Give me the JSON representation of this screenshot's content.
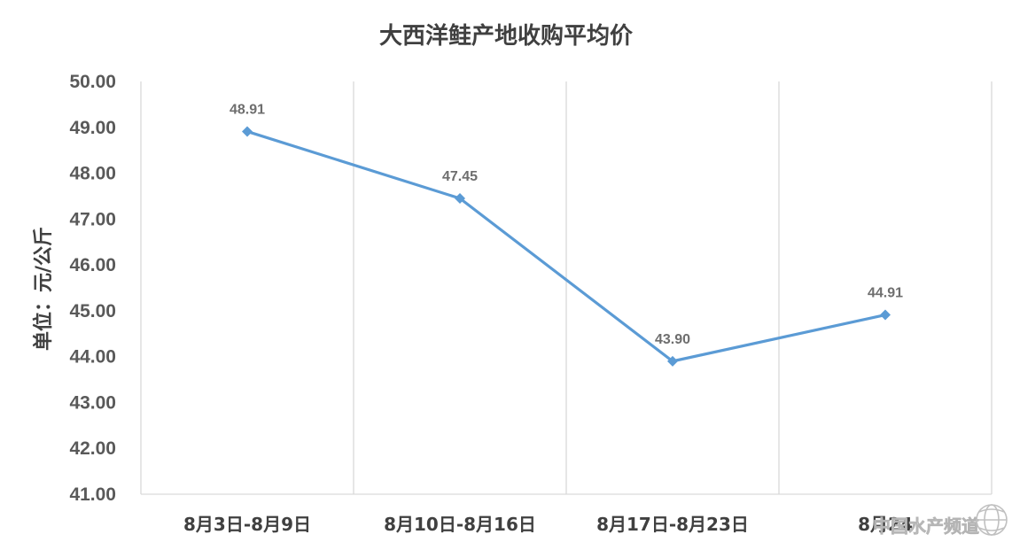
{
  "chart_data": {
    "type": "line",
    "title": "大西洋鲑产地收购平均价",
    "xlabel": "",
    "ylabel": "单位：元/公斤",
    "categories": [
      "8月3日-8月9日",
      "8月10日-8月16日",
      "8月17日-8月23日",
      "8月24"
    ],
    "series": [
      {
        "values": [
          48.91,
          47.45,
          43.9,
          44.91
        ],
        "data_labels": [
          "48.91",
          "47.45",
          "43.90",
          "44.91"
        ],
        "color": "#5B9BD5"
      }
    ],
    "ylim": [
      41,
      50
    ],
    "yticks": [
      "41.00",
      "42.00",
      "43.00",
      "44.00",
      "45.00",
      "46.00",
      "47.00",
      "48.00",
      "49.00",
      "50.00"
    ],
    "grid": "vertical",
    "legend": "none"
  },
  "watermark": {
    "text": "中国水产频道",
    "icon": "globe-icon"
  }
}
